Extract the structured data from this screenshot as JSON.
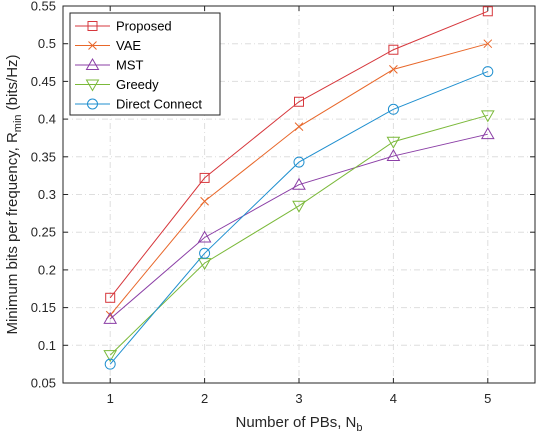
{
  "chart_data": {
    "type": "line",
    "x": [
      1,
      2,
      3,
      4,
      5
    ],
    "xlim": [
      0.5,
      5.5
    ],
    "ylim": [
      0.05,
      0.55
    ],
    "xticks": [
      1,
      2,
      3,
      4,
      5
    ],
    "yticks": [
      0.05,
      0.1,
      0.15,
      0.2,
      0.25,
      0.3,
      0.35,
      0.4,
      0.45,
      0.5,
      0.55
    ],
    "xlabel": {
      "main": "Number of PBs, N",
      "sub": "b"
    },
    "ylabel": {
      "pre": "Minimum bits per frequency, R",
      "sub": "min",
      "post": " (bits/Hz)"
    },
    "grid": true,
    "legend_position": "top-left",
    "series": [
      {
        "name": "Proposed",
        "color": "#d6373c",
        "marker": "square",
        "values": [
          0.163,
          0.322,
          0.423,
          0.492,
          0.543
        ]
      },
      {
        "name": "VAE",
        "color": "#e8672a",
        "marker": "x",
        "values": [
          0.14,
          0.291,
          0.39,
          0.466,
          0.5
        ]
      },
      {
        "name": "MST",
        "color": "#8b3fa6",
        "marker": "triangle-up",
        "values": [
          0.135,
          0.243,
          0.313,
          0.351,
          0.38
        ]
      },
      {
        "name": "Greedy",
        "color": "#7bb93a",
        "marker": "triangle-down",
        "values": [
          0.087,
          0.209,
          0.285,
          0.37,
          0.405
        ]
      },
      {
        "name": "Direct Connect",
        "color": "#1f8fcf",
        "marker": "circle",
        "values": [
          0.075,
          0.222,
          0.343,
          0.413,
          0.463
        ]
      }
    ]
  }
}
